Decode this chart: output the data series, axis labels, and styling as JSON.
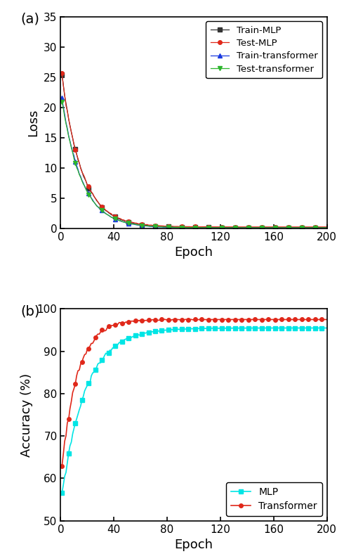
{
  "fig_width": 4.8,
  "fig_height": 7.88,
  "dpi": 100,
  "panel_a": {
    "label": "(a)",
    "xlabel": "Epoch",
    "ylabel": "Loss",
    "xlim": [
      0,
      200
    ],
    "ylim": [
      0,
      35
    ],
    "yticks": [
      0,
      5,
      10,
      15,
      20,
      25,
      30,
      35
    ],
    "xticks": [
      0,
      40,
      80,
      120,
      160,
      200
    ],
    "legend_entries": [
      "Train-MLP",
      "Test-MLP",
      "Train-transformer",
      "Test-transformer"
    ],
    "line_colors": [
      "#333333",
      "#e0281a",
      "#1a3ae0",
      "#2db52d"
    ],
    "markers": [
      "s",
      "o",
      "^",
      "v"
    ]
  },
  "panel_b": {
    "label": "(b)",
    "xlabel": "Epoch",
    "ylabel": "Accuracy (%)",
    "xlim": [
      0,
      200
    ],
    "ylim": [
      50,
      100
    ],
    "yticks": [
      50,
      60,
      70,
      80,
      90,
      100
    ],
    "xticks": [
      0,
      40,
      80,
      120,
      160,
      200
    ],
    "legend_entries": [
      "MLP",
      "Transformer"
    ],
    "line_colors": [
      "#00e5e5",
      "#e0281a"
    ],
    "markers": [
      "s",
      "o"
    ]
  }
}
